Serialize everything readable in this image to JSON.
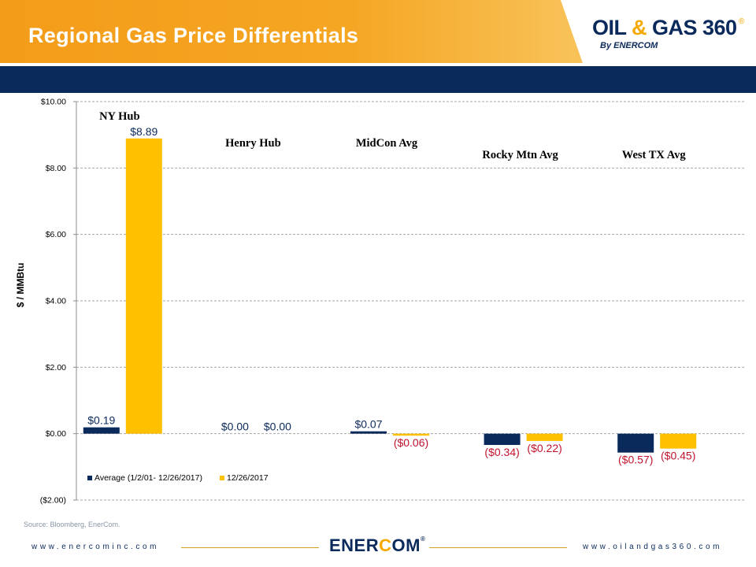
{
  "slide": {
    "title": "Regional Gas Price Differentials",
    "source": "Source: Bloomberg, EnerCom.",
    "footer_left": "www.enercominc.com",
    "footer_right": "www.oilandgas360.com",
    "footer_logo_a": "ENER",
    "footer_logo_b": "C",
    "footer_logo_c": "OM",
    "footer_logo_reg": "®"
  },
  "logo": {
    "main_a": "OIL ",
    "main_b": "&",
    "main_c": " GAS 360",
    "reg": "®",
    "sub": "By ENERCOM"
  },
  "colors": {
    "navy": "#0b2a5c",
    "gold": "#ffc000",
    "orange": "#f5a623",
    "negative_label": "#c0142c"
  },
  "chart_data": {
    "type": "bar",
    "ylabel": "$ / MMBtu",
    "ylim": [
      -2,
      10
    ],
    "ytick_step": 2,
    "ytick_labels": [
      "($2.00)",
      "$0.00",
      "$2.00",
      "$4.00",
      "$6.00",
      "$8.00",
      "$10.00"
    ],
    "grid": true,
    "legend_position": "bottom-left",
    "categories": [
      "NY Hub",
      "Henry Hub",
      "MidCon Avg",
      "Rocky Mtn Avg",
      "West TX Avg"
    ],
    "series": [
      {
        "name": "Average (1/2/01- 12/26/2017)",
        "color": "#0b2a5c",
        "values": [
          0.19,
          0.0,
          0.07,
          -0.34,
          -0.57
        ],
        "labels": [
          "$0.19",
          "$0.00",
          "$0.07",
          "($0.34)",
          "($0.57)"
        ]
      },
      {
        "name": "12/26/2017",
        "color": "#ffc000",
        "values": [
          8.89,
          0.0,
          -0.06,
          -0.22,
          -0.45
        ],
        "labels": [
          "$8.89",
          "$0.00",
          "($0.06)",
          "($0.22)",
          "($0.45)"
        ]
      }
    ]
  }
}
